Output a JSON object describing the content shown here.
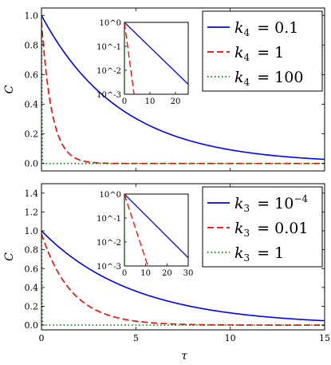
{
  "figure": {
    "xlabel": "τ",
    "ylabel": "C"
  },
  "chart_data": [
    {
      "type": "line",
      "panel": "top",
      "ylabel": "C",
      "xlim": [
        0,
        15
      ],
      "ylim": [
        -0.05,
        1.05
      ],
      "x_ticks": [
        0,
        5,
        10,
        15
      ],
      "y_ticks": [
        "0.0",
        "0.2",
        "0.4",
        "0.6",
        "0.8",
        "1.0"
      ],
      "y_tick_values": [
        0,
        0.2,
        0.4,
        0.6,
        0.8,
        1.0
      ],
      "legend_position": "top-right",
      "series": [
        {
          "legend_var": "k",
          "legend_sub": "4",
          "legend_rhs": "= 0.1",
          "color": "#0000ff",
          "style": "solid",
          "tau_decay": 4.2,
          "amplitude": 1.0
        },
        {
          "legend_var": "k",
          "legend_sub": "4",
          "legend_rhs": "= 1",
          "color": "#ff0000",
          "style": "dashed",
          "tau_decay": 0.55,
          "amplitude": 0.96
        },
        {
          "legend_var": "k",
          "legend_sub": "4",
          "legend_rhs": "= 100",
          "color": "#008000",
          "style": "dotted",
          "tau_decay": 0.01,
          "amplitude": 1.0
        }
      ],
      "inset": {
        "xlim": [
          0,
          25
        ],
        "ylim_log10": [
          -3,
          0
        ],
        "x_ticks": [
          0,
          10,
          20
        ],
        "y_ticks": [
          "10^0",
          "10^-1",
          "10^-2",
          "10^-3"
        ],
        "y_tick_exponents": [
          0,
          -1,
          -2,
          -3
        ]
      }
    },
    {
      "type": "line",
      "panel": "bottom",
      "ylabel": "C",
      "xlabel": "τ",
      "xlim": [
        0,
        15
      ],
      "ylim": [
        -0.05,
        1.5
      ],
      "x_ticks": [
        0,
        5,
        10,
        15
      ],
      "y_ticks": [
        "0.0",
        "0.2",
        "0.4",
        "0.6",
        "0.8",
        "1.0",
        "1.2",
        "1.4"
      ],
      "y_tick_values": [
        0,
        0.2,
        0.4,
        0.6,
        0.8,
        1.0,
        1.2,
        1.4
      ],
      "legend_position": "top-right",
      "series": [
        {
          "legend_var": "k",
          "legend_sub": "3",
          "legend_rhs": "= 10",
          "legend_sup": "−4",
          "color": "#0000ff",
          "style": "solid",
          "tau_decay": 4.9,
          "amplitude": 1.0
        },
        {
          "legend_var": "k",
          "legend_sub": "3",
          "legend_rhs": "= 0.01",
          "color": "#ff0000",
          "style": "dashed",
          "tau_decay": 1.6,
          "amplitude": 0.97
        },
        {
          "legend_var": "k",
          "legend_sub": "3",
          "legend_rhs": "= 1",
          "color": "#008000",
          "style": "dotted",
          "tau_decay": 0.01,
          "amplitude": 1.0
        }
      ],
      "inset": {
        "xlim": [
          0,
          30
        ],
        "ylim_log10": [
          -3,
          0
        ],
        "x_ticks": [
          0,
          10,
          20,
          30
        ],
        "y_ticks": [
          "10^0",
          "10^-1",
          "10^-2",
          "10^-3"
        ],
        "y_tick_exponents": [
          0,
          -1,
          -2,
          -3
        ]
      }
    }
  ]
}
